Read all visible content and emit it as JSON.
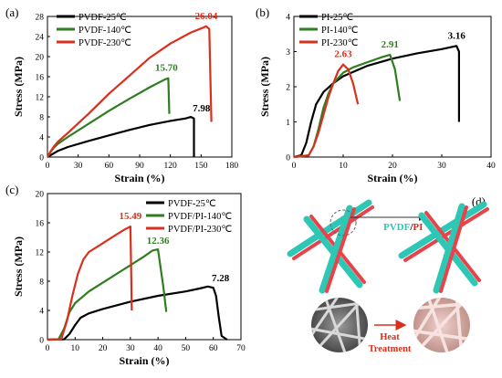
{
  "colors": {
    "black": "#000000",
    "green": "#2e7d1f",
    "red": "#d8301c",
    "teal": "#2ec7b6",
    "fiber_red": "#e8434a",
    "sem_pink": "#e4b9b4"
  },
  "chart_data": [
    {
      "panel": "(a)",
      "type": "line",
      "xlabel": "Strain (%)",
      "ylabel": "Stress (MPa)",
      "xlim": [
        0,
        180
      ],
      "ylim": [
        0,
        28
      ],
      "xticks": [
        0,
        30,
        60,
        90,
        120,
        150,
        180
      ],
      "yticks": [
        0,
        4,
        8,
        12,
        16,
        20,
        24,
        28
      ],
      "grid": false,
      "legend": "top-left",
      "series": [
        {
          "name": "PVDF-25℃",
          "color": "#000000",
          "peak_label": "7.98",
          "x": [
            0,
            5,
            10,
            20,
            40,
            60,
            80,
            100,
            120,
            135,
            140,
            143,
            143
          ],
          "y": [
            0,
            0.6,
            1.2,
            2.0,
            3.2,
            4.3,
            5.4,
            6.4,
            7.2,
            7.7,
            7.98,
            7.7,
            0
          ]
        },
        {
          "name": "PVDF-140℃",
          "color": "#2e7d1f",
          "peak_label": "15.70",
          "x": [
            0,
            3,
            6,
            10,
            20,
            40,
            60,
            80,
            100,
            115,
            118,
            119
          ],
          "y": [
            0,
            1.0,
            1.8,
            2.6,
            4.0,
            6.6,
            9.2,
            11.6,
            13.9,
            15.5,
            15.7,
            8.6
          ]
        },
        {
          "name": "PVDF-230℃",
          "color": "#d8301c",
          "peak_label": "26.04",
          "x": [
            0,
            3,
            6,
            10,
            20,
            40,
            60,
            80,
            100,
            120,
            140,
            150,
            155,
            158,
            160
          ],
          "y": [
            0,
            1.1,
            2.0,
            3.0,
            4.8,
            8.6,
            12.6,
            16.2,
            19.8,
            22.6,
            24.8,
            25.6,
            26.04,
            25.5,
            7.0
          ]
        }
      ]
    },
    {
      "panel": "(b)",
      "type": "line",
      "xlabel": "Strain (%)",
      "ylabel": "Stress (MPa)",
      "xlim": [
        0,
        40
      ],
      "ylim": [
        0,
        4
      ],
      "xticks": [
        0,
        10,
        20,
        30,
        40
      ],
      "yticks": [
        0,
        1,
        2,
        3,
        4
      ],
      "grid": false,
      "legend": "top-left",
      "series": [
        {
          "name": "PI-25℃",
          "color": "#000000",
          "peak_label": "3.16",
          "x": [
            0,
            1.5,
            2.5,
            3.5,
            4.5,
            6,
            8,
            10,
            15,
            20,
            25,
            30,
            33,
            33.5,
            33.5
          ],
          "y": [
            0,
            0.05,
            0.4,
            1.0,
            1.5,
            1.85,
            2.1,
            2.3,
            2.6,
            2.8,
            2.95,
            3.07,
            3.16,
            3.0,
            1.0
          ]
        },
        {
          "name": "PI-140℃",
          "color": "#2e7d1f",
          "peak_label": "2.91",
          "x": [
            0,
            3,
            4,
            5,
            6,
            7,
            8,
            10,
            12,
            15,
            18,
            19.5,
            20.5,
            21.5
          ],
          "y": [
            0,
            0.05,
            0.3,
            0.8,
            1.4,
            1.8,
            2.1,
            2.4,
            2.55,
            2.7,
            2.85,
            2.91,
            2.5,
            1.6
          ]
        },
        {
          "name": "PI-230℃",
          "color": "#d8301c",
          "peak_label": "2.63",
          "x": [
            0,
            3,
            4,
            5,
            6,
            7,
            8,
            9,
            10,
            11,
            12,
            13
          ],
          "y": [
            0,
            0.05,
            0.3,
            0.7,
            1.2,
            1.7,
            2.1,
            2.45,
            2.63,
            2.5,
            2.1,
            1.5
          ]
        }
      ]
    },
    {
      "panel": "(c)",
      "type": "line",
      "xlabel": "Strain (%)",
      "ylabel": "Stress (MPa)",
      "xlim": [
        0,
        70
      ],
      "ylim": [
        0,
        20
      ],
      "xticks": [
        0,
        10,
        20,
        30,
        40,
        50,
        60,
        70
      ],
      "yticks": [
        0,
        4,
        8,
        12,
        16,
        20
      ],
      "grid": false,
      "legend": "top-right",
      "series": [
        {
          "name": "PVDF-25℃",
          "color": "#000000",
          "peak_label": "7.28",
          "x": [
            0,
            6,
            8,
            10,
            12,
            15,
            20,
            30,
            40,
            50,
            55,
            58,
            60,
            61,
            62,
            63,
            65
          ],
          "y": [
            0,
            0.05,
            0.8,
            2.0,
            3.0,
            3.6,
            4.2,
            5.2,
            6.0,
            6.6,
            7.0,
            7.28,
            7.1,
            6.0,
            3.0,
            0.5,
            0
          ]
        },
        {
          "name": "PVDF/PI-140℃",
          "color": "#2e7d1f",
          "peak_label": "12.36",
          "x": [
            0,
            4,
            6,
            8,
            10,
            15,
            20,
            25,
            30,
            35,
            38,
            40,
            42,
            43
          ],
          "y": [
            0,
            0.05,
            1.5,
            3.8,
            5.0,
            6.6,
            7.8,
            9.0,
            10.2,
            11.4,
            12.2,
            12.36,
            7.0,
            3.8
          ]
        },
        {
          "name": "PVDF/PI-230℃",
          "color": "#d8301c",
          "peak_label": "15.49",
          "x": [
            0,
            5,
            7,
            9,
            11,
            13,
            15,
            20,
            25,
            28,
            30,
            30.5
          ],
          "y": [
            0,
            0.05,
            2.5,
            6.0,
            9.0,
            11.0,
            12.0,
            13.2,
            14.4,
            15.1,
            15.49,
            4.0
          ]
        }
      ]
    }
  ],
  "panel_d": {
    "label": "(d)",
    "fiber_label_part1": "PVDF",
    "fiber_label_sep": "/",
    "fiber_label_part2": "PI",
    "process_label_line1": "Heat",
    "process_label_line2": "Treatment"
  }
}
